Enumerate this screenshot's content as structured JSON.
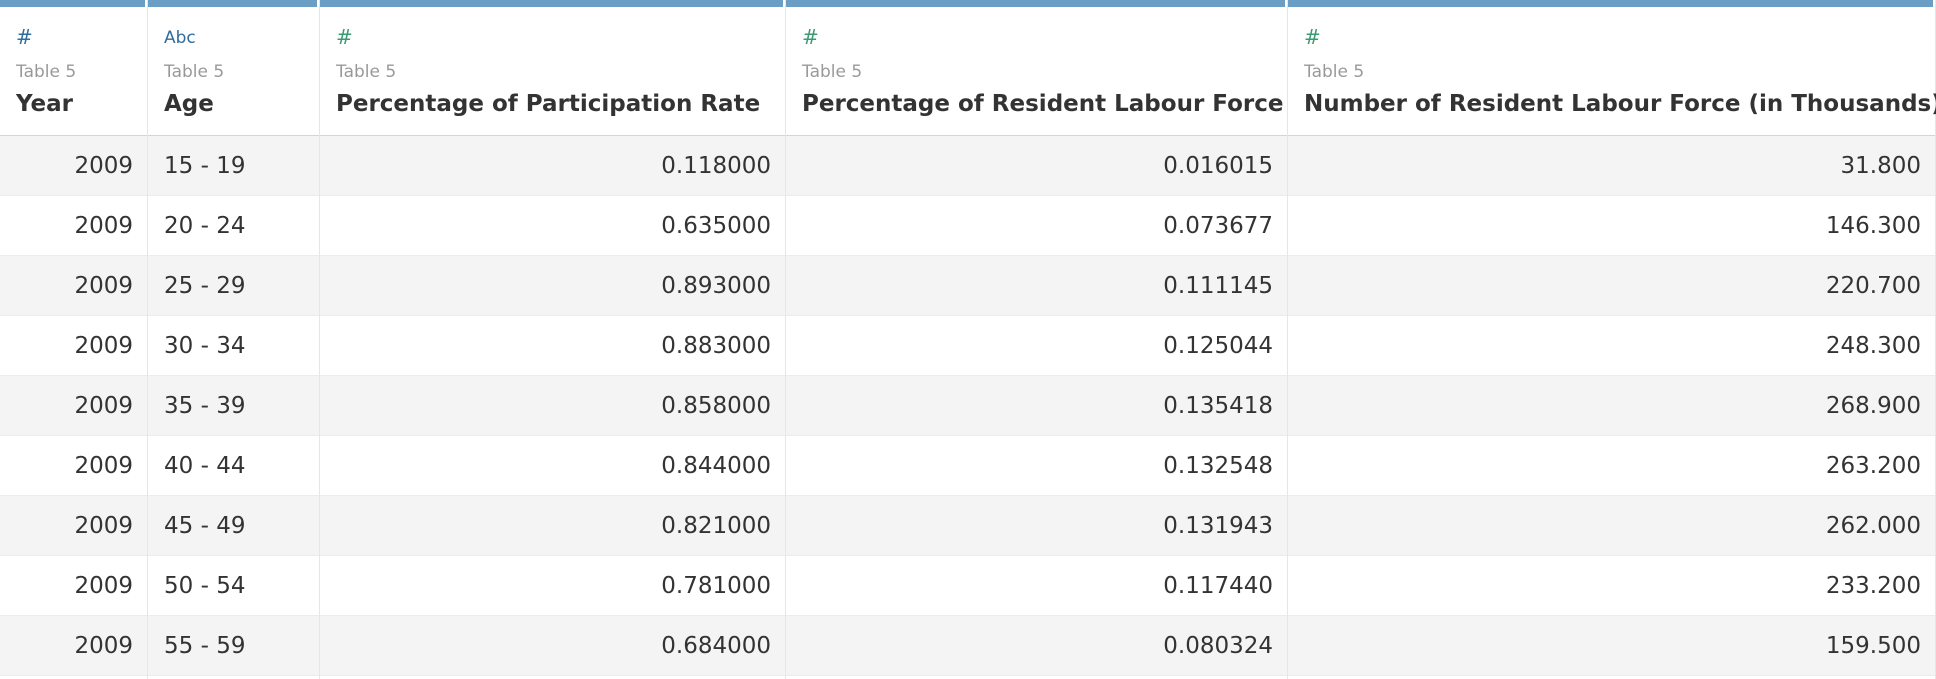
{
  "table": {
    "columns": [
      {
        "icon": "#",
        "source": "Table 5",
        "name": "Year"
      },
      {
        "icon": "Abc",
        "source": "Table 5",
        "name": "Age"
      },
      {
        "icon": "#",
        "source": "Table 5",
        "name": "Percentage of Participation Rate"
      },
      {
        "icon": "#",
        "source": "Table 5",
        "name": "Percentage of Resident Labour Force"
      },
      {
        "icon": "#",
        "source": "Table 5",
        "name": "Number of Resident Labour Force (in Thousands)"
      }
    ],
    "rows": [
      [
        "2009",
        "15 - 19",
        "0.118000",
        "0.016015",
        "31.800"
      ],
      [
        "2009",
        "20 - 24",
        "0.635000",
        "0.073677",
        "146.300"
      ],
      [
        "2009",
        "25 - 29",
        "0.893000",
        "0.111145",
        "220.700"
      ],
      [
        "2009",
        "30 - 34",
        "0.883000",
        "0.125044",
        "248.300"
      ],
      [
        "2009",
        "35 - 39",
        "0.858000",
        "0.135418",
        "268.900"
      ],
      [
        "2009",
        "40 - 44",
        "0.844000",
        "0.132548",
        "263.200"
      ],
      [
        "2009",
        "45 - 49",
        "0.821000",
        "0.131943",
        "262.000"
      ],
      [
        "2009",
        "50 - 54",
        "0.781000",
        "0.117440",
        "233.200"
      ],
      [
        "2009",
        "55 - 59",
        "0.684000",
        "0.080324",
        "159.500"
      ]
    ]
  }
}
